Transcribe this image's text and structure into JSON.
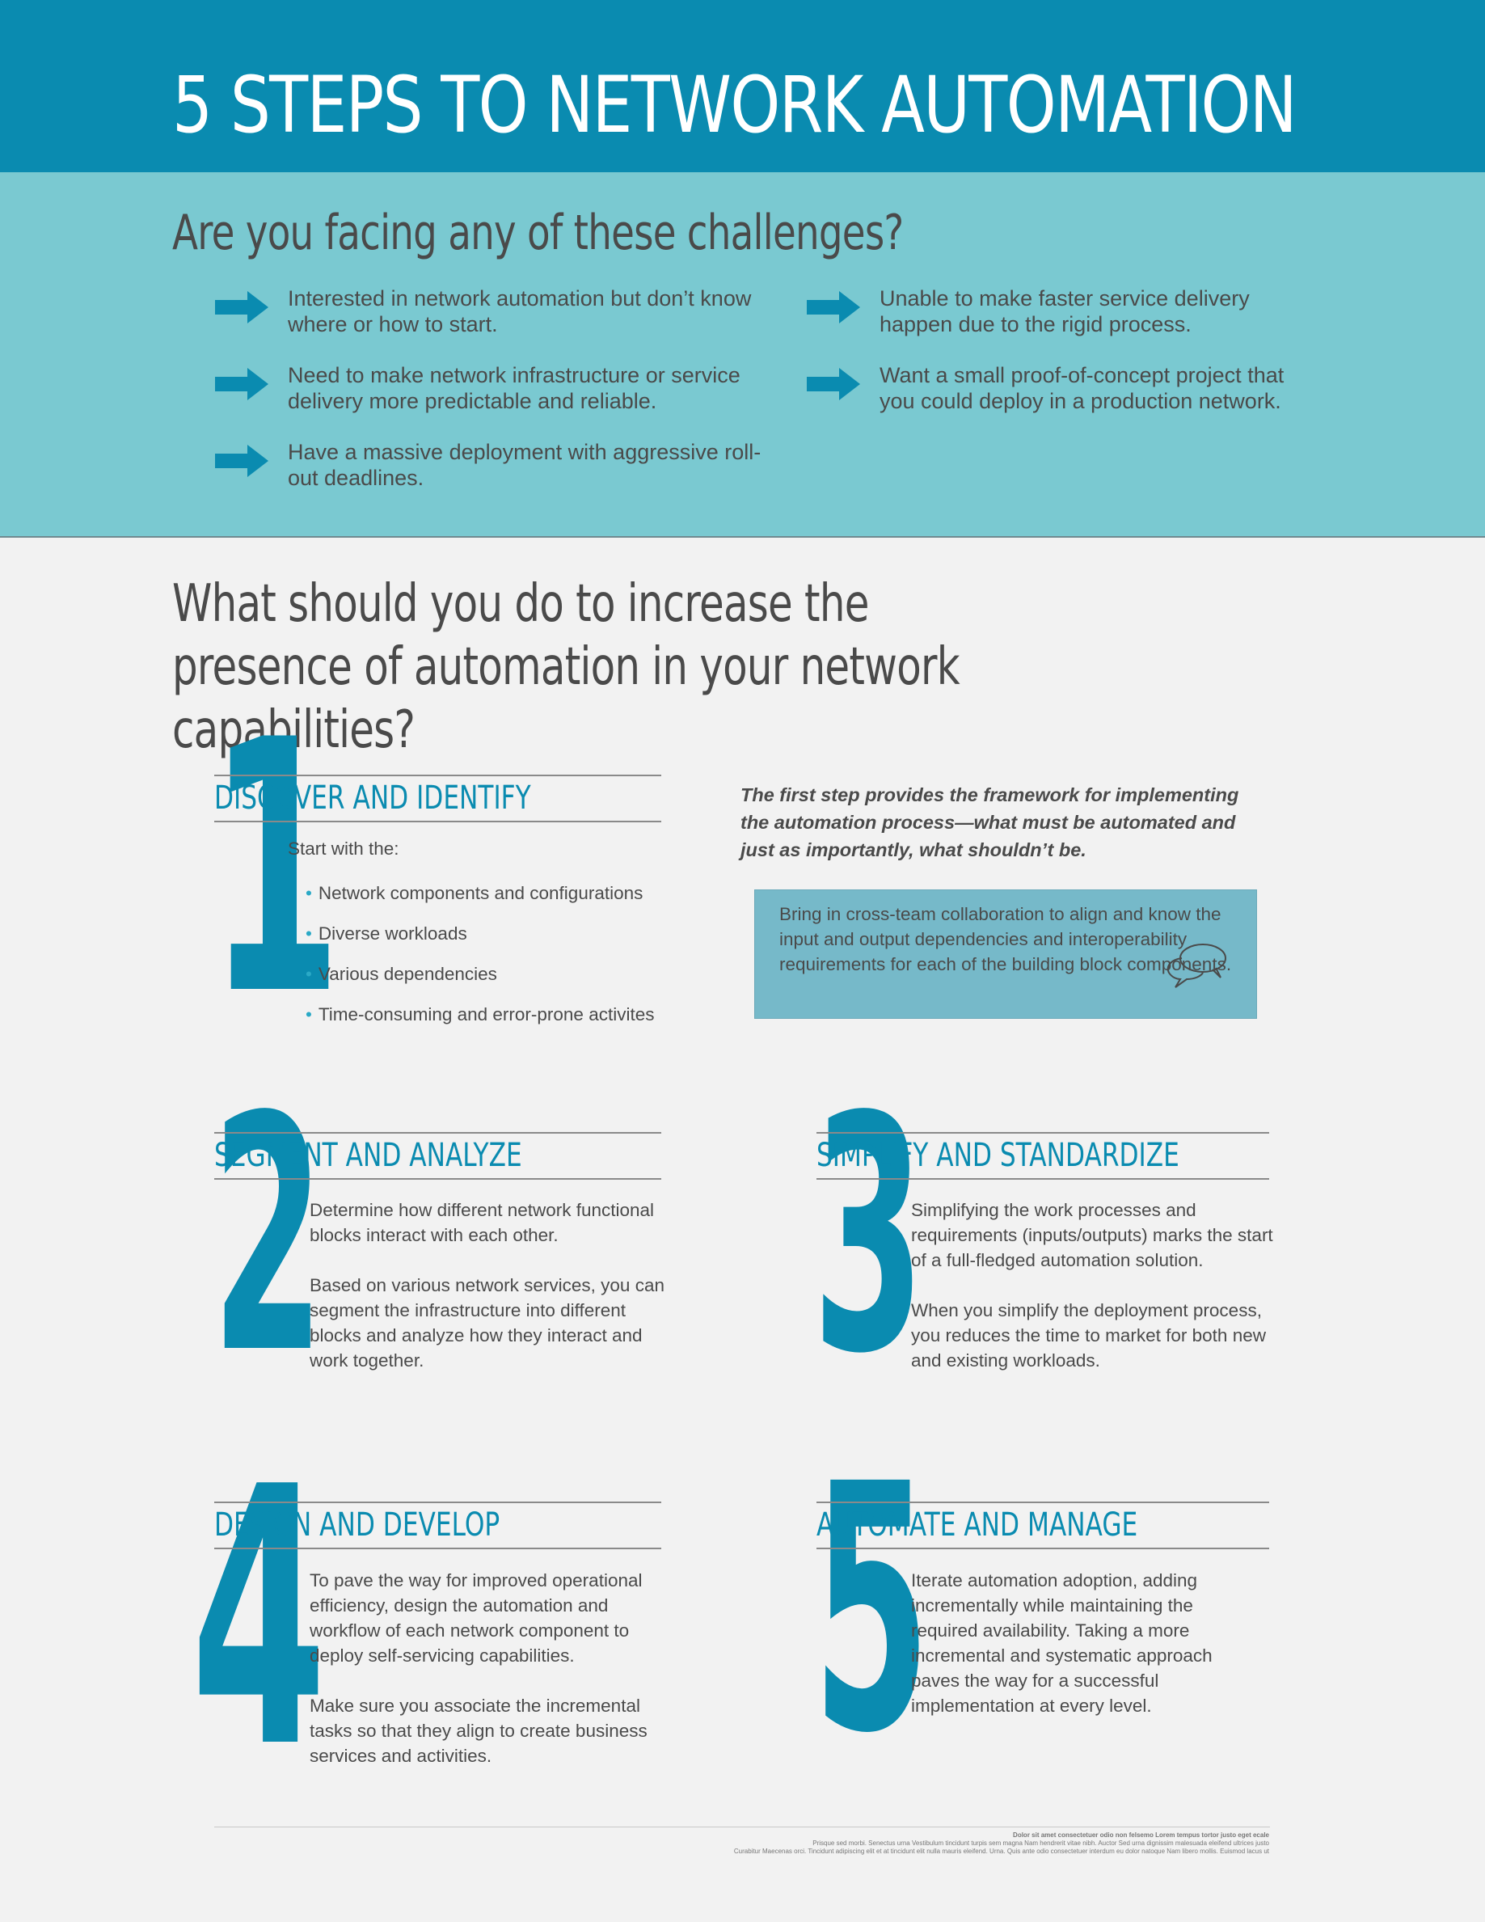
{
  "header": {
    "title": "5 STEPS TO NETWORK AUTOMATION"
  },
  "challenges": {
    "heading": "Are you facing any of these challenges?",
    "items": [
      "Interested in network automation but don’t know where or how to start.",
      "Need to make network infrastructure or service delivery more predictable and reliable.",
      "Have a massive deployment with aggressive roll-out deadlines.",
      "Unable to make faster service delivery happen due to the rigid process.",
      "Want a small proof-of-concept project that you could deploy in a production network."
    ]
  },
  "question": "What should you do to increase the presence of automation in your network capabilities?",
  "steps": [
    {
      "number": "1",
      "title": "DISCOVER AND IDENTIFY",
      "lead": "Start with the:",
      "bullets": [
        "Network components and configurations",
        "Diverse workloads",
        "Various dependencies",
        "Time-consuming and error-prone activites"
      ],
      "intro": "The first step provides the framework for implementing the automation process—what must be automated and just as importantly, what shouldn’t be.",
      "callout": "Bring in cross-team collaboration to align and know the input and output dependencies and interoperability requirements for each of the building block components."
    },
    {
      "number": "2",
      "title": "SEGMENT AND ANALYZE",
      "paragraphs": [
        "Determine how different network functional blocks interact with each other.",
        "Based on various network services, you can segment the infrastructure into different blocks and analyze how they interact and work together."
      ]
    },
    {
      "number": "3",
      "title": "SIMPLIFY AND STANDARDIZE",
      "paragraphs": [
        "Simplifying the work processes and requirements (inputs/outputs) marks the start of a full-fledged automation solution.",
        "When you simplify the deployment process, you reduces the time to market for both new and existing workloads."
      ]
    },
    {
      "number": "4",
      "title": "DESIGN AND DEVELOP",
      "paragraphs": [
        "To pave the way for improved operational efficiency, design the automation and workflow of each network component to deploy self-servicing capabilities.",
        "Make sure you associate the incremental tasks so that they align to create business services and activities."
      ]
    },
    {
      "number": "5",
      "title": "AUTOMATE AND MANAGE",
      "paragraphs": [
        "Iterate automation adoption, adding incrementally while maintaining the required availability. Taking a more incremental and systematic approach paves the way for a successful implementation at every level."
      ]
    }
  ],
  "footer": {
    "line1": "Dolor sit amet consectetuer odio non felsemo Lorem tempus tortor justo eget ecale",
    "line2": "Prisque sed morbi. Senectus urna Vestibulum tincidunt turpis sem magna Nam hendrerit vitae nibh. Auctor Sed urna dignissim malesuada eleifend ultrices justo",
    "line3": "Curabitur Maecenas orci. Tincidunt adipiscing elit et at tincidunt elit nulla mauris eleifend. Urna. Quis ante odio consectetuer interdum eu dolor natoque Nam libero mollis. Euismod lacus ut"
  },
  "colors": {
    "brand": "#0a8bb0",
    "challenge_band": "#7ac9d1",
    "callout": "#76b9c9",
    "background": "#f2f2f2"
  },
  "icons": {
    "bullet_arrow": "arrow-right-icon",
    "callout": "chat-bubbles-icon"
  }
}
